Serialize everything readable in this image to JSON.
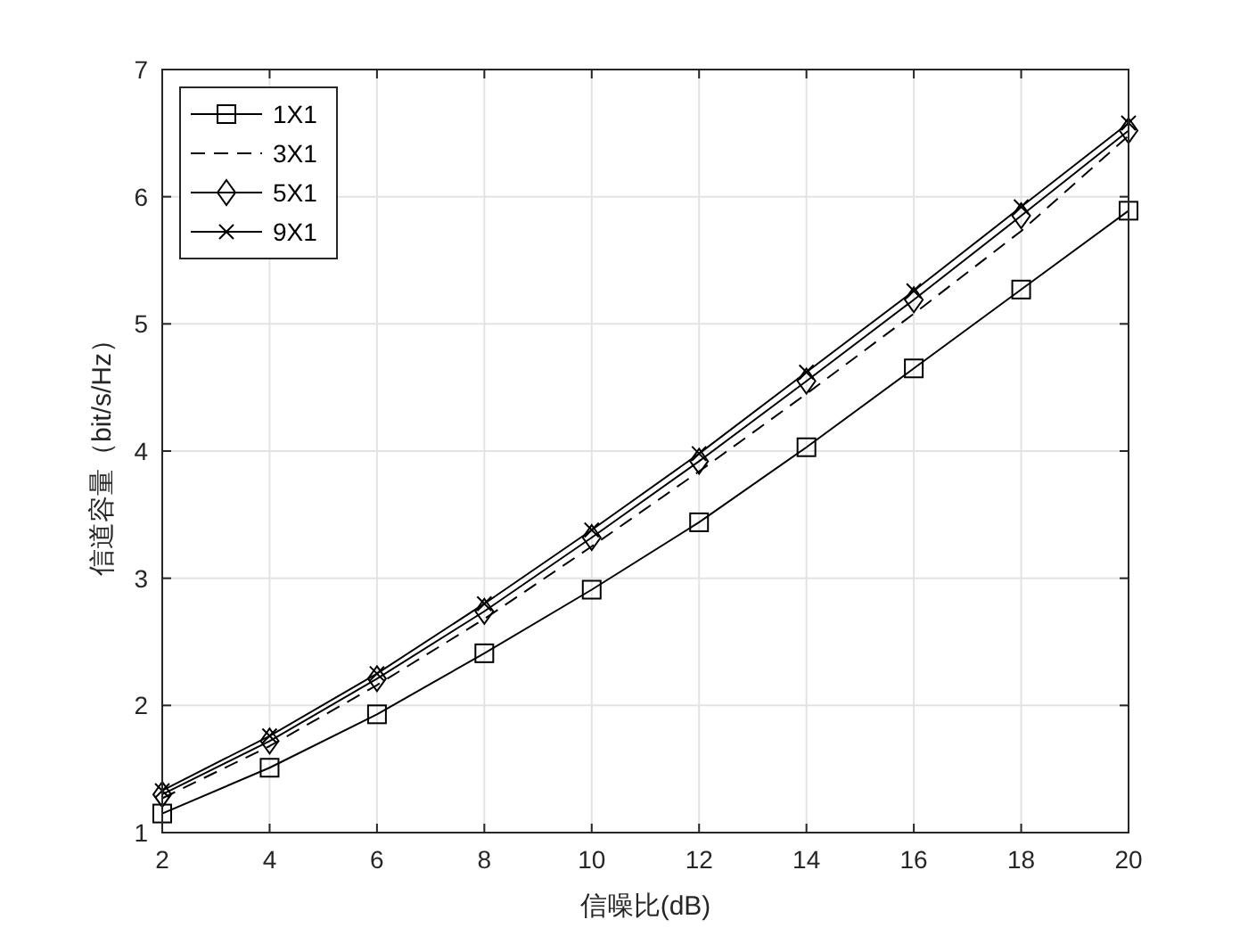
{
  "chart_data": {
    "type": "line",
    "xlabel": "信噪比(dB)",
    "ylabel": "信道容量（bit/s/Hz）",
    "x": [
      2,
      4,
      6,
      8,
      10,
      12,
      14,
      16,
      18,
      20
    ],
    "series": [
      {
        "name": "1X1",
        "color": "#000000",
        "marker": "square",
        "line_style": "solid",
        "values": [
          1.15,
          1.51,
          1.93,
          2.41,
          2.91,
          3.44,
          4.03,
          4.65,
          5.27,
          5.89
        ]
      },
      {
        "name": "3X1",
        "color": "#000000",
        "marker": "none",
        "line_style": "dashed",
        "values": [
          1.27,
          1.68,
          2.16,
          2.68,
          3.25,
          3.84,
          4.45,
          5.08,
          5.73,
          6.48
        ]
      },
      {
        "name": "5X1",
        "color": "#000000",
        "marker": "diamond",
        "line_style": "solid",
        "values": [
          1.3,
          1.72,
          2.21,
          2.74,
          3.32,
          3.92,
          4.55,
          5.19,
          5.85,
          6.52
        ]
      },
      {
        "name": "9X1",
        "color": "#000000",
        "marker": "cross",
        "line_style": "solid",
        "values": [
          1.33,
          1.76,
          2.25,
          2.8,
          3.38,
          3.98,
          4.62,
          5.26,
          5.92,
          6.58
        ]
      }
    ],
    "xlim": [
      2,
      20
    ],
    "xticks": [
      2,
      4,
      6,
      8,
      10,
      12,
      14,
      16,
      18,
      20
    ],
    "ylim": [
      1,
      7
    ],
    "yticks": [
      1,
      2,
      3,
      4,
      5,
      6,
      7
    ],
    "grid": true,
    "legend": "top left"
  }
}
